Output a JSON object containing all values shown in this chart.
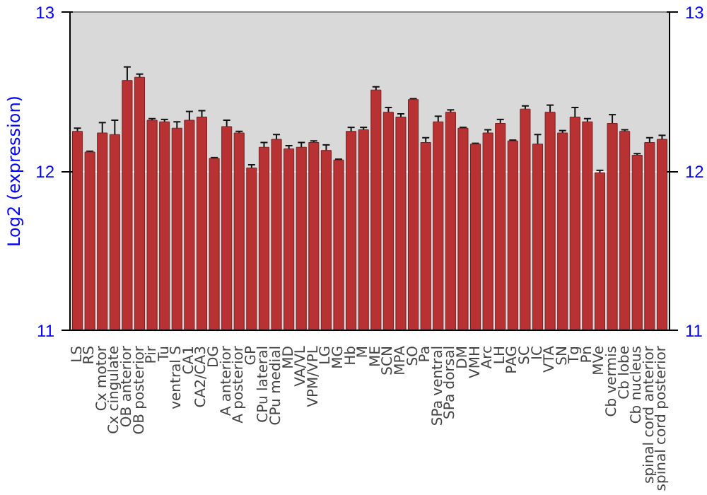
{
  "chart_data": {
    "type": "bar",
    "ylabel": "Log2 (expression)",
    "categories": [
      "LS",
      "RS",
      "Cx motor",
      "Cx cingulate",
      "OB anterior",
      "OB posterior",
      "Pir",
      "Tu",
      "ventral S",
      "CA1",
      "CA2/CA3",
      "DG",
      "A anterior",
      "A posterior",
      "GP",
      "CPu lateral",
      "CPu medial",
      "MD",
      "VA/VL",
      "VPM/VPL",
      "LG",
      "MG",
      "Hb",
      "M",
      "ME",
      "SCN",
      "MPA",
      "SO",
      "Pa",
      "SPa ventral",
      "SPa dorsal",
      "DM",
      "VMH",
      "Arc",
      "LH",
      "PAG",
      "SC",
      "IC",
      "VTA",
      "SN",
      "Tg",
      "Pn",
      "MVe",
      "Cb vermis",
      "Cb lobe",
      "Cb nucleus",
      "spinal cord anterior",
      "spinal cord posterior"
    ],
    "values": [
      12.25,
      12.12,
      12.24,
      12.23,
      12.57,
      12.59,
      12.32,
      12.31,
      12.27,
      12.32,
      12.34,
      12.08,
      12.28,
      12.24,
      12.02,
      12.15,
      12.2,
      12.14,
      12.15,
      12.18,
      12.13,
      12.07,
      12.25,
      12.26,
      12.51,
      12.37,
      12.34,
      12.45,
      12.18,
      12.31,
      12.37,
      12.27,
      12.17,
      12.24,
      12.3,
      12.19,
      12.39,
      12.17,
      12.37,
      12.24,
      12.34,
      12.31,
      11.99,
      12.3,
      12.25,
      12.1,
      12.18,
      12.2
    ],
    "errors": [
      0.02,
      0.005,
      0.065,
      0.09,
      0.085,
      0.02,
      0.01,
      0.015,
      0.04,
      0.055,
      0.04,
      0.005,
      0.04,
      0.01,
      0.02,
      0.03,
      0.03,
      0.02,
      0.03,
      0.01,
      0.035,
      0.005,
      0.025,
      0.015,
      0.02,
      0.03,
      0.02,
      0.005,
      0.03,
      0.035,
      0.015,
      0.005,
      0.005,
      0.02,
      0.025,
      0.005,
      0.02,
      0.06,
      0.045,
      0.015,
      0.06,
      0.02,
      0.015,
      0.055,
      0.01,
      0.01,
      0.03,
      0.025
    ],
    "color": "#b83234",
    "ylim": [
      11,
      13
    ],
    "yticks": [
      11,
      12,
      13
    ],
    "y2lim": [
      11,
      13
    ],
    "y2ticks": [
      11,
      12,
      13
    ],
    "grid": "y"
  }
}
